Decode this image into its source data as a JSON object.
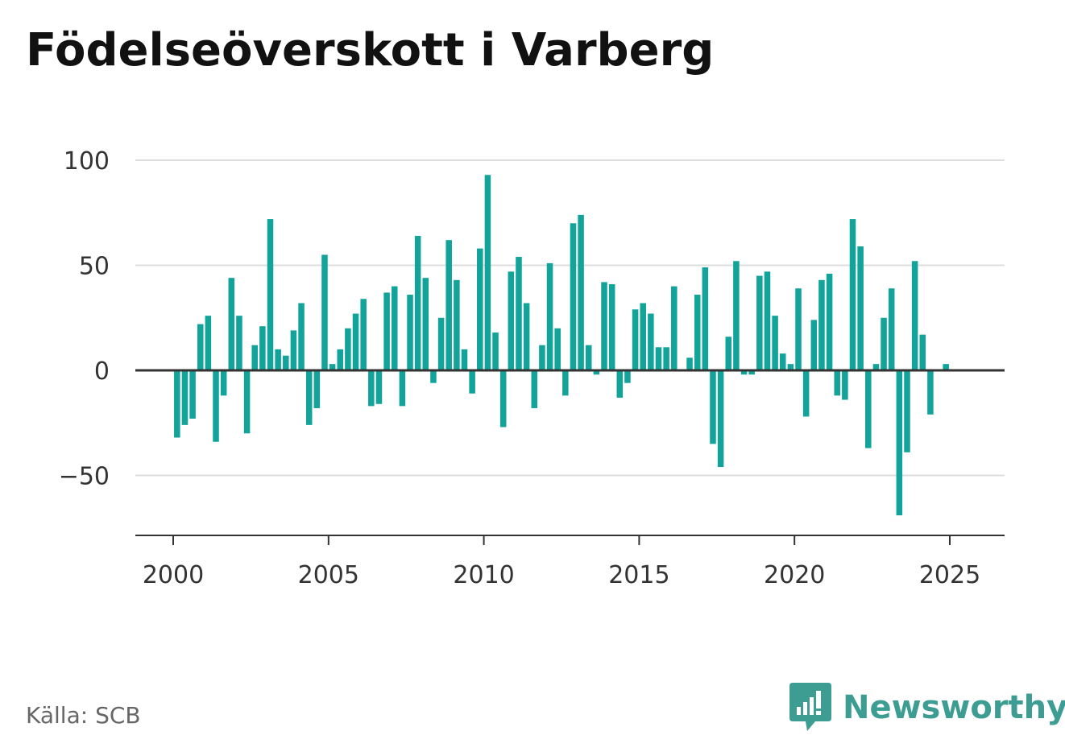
{
  "title": "Födelseöverskott i Varberg",
  "source": "Källa: SCB",
  "brand": {
    "name": "Newsworthy",
    "icon": "newsworthy-logo-icon",
    "color": "#3d9d93"
  },
  "colors": {
    "bar": "#12a39a",
    "grid": "#dddddd",
    "axis": "#333333"
  },
  "chart_data": {
    "type": "bar",
    "title": "Födelseöverskott i Varberg",
    "xlabel": "",
    "ylabel": "",
    "ylim": [
      -78,
      110
    ],
    "xlim": [
      1998.75,
      2026.75
    ],
    "yticks": [
      100,
      50,
      0,
      -50
    ],
    "ytick_labels": [
      "100",
      "50",
      "0",
      "−50"
    ],
    "xticks": [
      2000,
      2005,
      2010,
      2015,
      2020,
      2025
    ],
    "xtick_labels": [
      "2000",
      "2005",
      "2010",
      "2015",
      "2020",
      "2025"
    ],
    "grid": true,
    "frequency": "quarterly",
    "start_year": 2000,
    "start_quarter": 1,
    "series": [
      {
        "values": [
          -32,
          -26,
          -23,
          22,
          26,
          -34,
          -12,
          44,
          26,
          -30,
          12,
          21,
          72,
          10,
          7,
          19,
          32,
          -26,
          -18,
          55,
          3,
          10,
          20,
          27,
          34,
          -17,
          -16,
          37,
          40,
          -17,
          36,
          64,
          44,
          -6,
          25,
          62,
          43,
          10,
          -11,
          58,
          93,
          18,
          -27,
          47,
          54,
          32,
          -18,
          12,
          51,
          20,
          -12,
          70,
          74,
          12,
          -2,
          42,
          41,
          -13,
          -6,
          29,
          32,
          27,
          11,
          11,
          40,
          0,
          6,
          36,
          49,
          -35,
          -46,
          16,
          52,
          -2,
          -2,
          45,
          47,
          26,
          8,
          3,
          39,
          -22,
          24,
          43,
          46,
          -12,
          -14,
          72,
          59,
          -37,
          3,
          25,
          39,
          -69,
          -39,
          52,
          17,
          -21,
          0,
          3
        ]
      }
    ]
  }
}
